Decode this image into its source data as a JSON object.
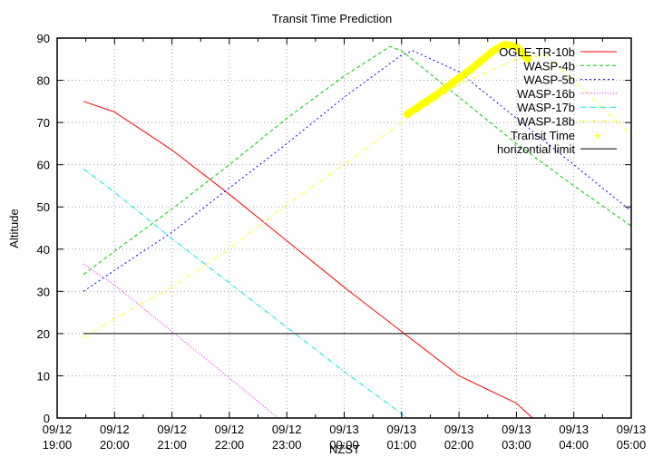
{
  "chart_data": {
    "type": "line",
    "title": "Transit Time Prediction",
    "xlabel": "NZST",
    "ylabel": "Altitude",
    "ylim": [
      0,
      90
    ],
    "yticks": [
      0,
      10,
      20,
      30,
      40,
      50,
      60,
      70,
      80,
      90
    ],
    "xlim_hours": [
      0,
      10
    ],
    "xticks": [
      {
        "date": "09/12",
        "time": "19:00"
      },
      {
        "date": "09/12",
        "time": "20:00"
      },
      {
        "date": "09/12",
        "time": "21:00"
      },
      {
        "date": "09/12",
        "time": "22:00"
      },
      {
        "date": "09/12",
        "time": "23:00"
      },
      {
        "date": "09/13",
        "time": "00:00"
      },
      {
        "date": "09/13",
        "time": "01:00"
      },
      {
        "date": "09/13",
        "time": "02:00"
      },
      {
        "date": "09/13",
        "time": "03:00"
      },
      {
        "date": "09/13",
        "time": "04:00"
      },
      {
        "date": "09/13",
        "time": "05:00"
      }
    ],
    "grid": true,
    "legend_position": "top-right-inside",
    "x_unit": "hours since 09/12 19:00",
    "series": [
      {
        "name": "OGLE-TR-10b",
        "color": "#ff0000",
        "dash": "",
        "width": 1,
        "x": [
          0.46,
          1,
          2,
          3,
          4,
          5,
          6,
          7,
          8,
          8.28
        ],
        "y": [
          75,
          72.5,
          63.5,
          53,
          42,
          31,
          20.5,
          10,
          3.5,
          0
        ]
      },
      {
        "name": "WASP-4b",
        "color": "#00cc00",
        "dash": "4,3",
        "width": 1,
        "x": [
          0.46,
          1,
          2,
          3,
          4,
          5,
          5.8,
          6,
          7,
          8,
          9,
          10
        ],
        "y": [
          34,
          39.5,
          49.5,
          60,
          71,
          81,
          88,
          87,
          76,
          65,
          55,
          45.5
        ]
      },
      {
        "name": "WASP-5b",
        "color": "#0000ff",
        "dash": "2,3",
        "width": 1,
        "x": [
          0.46,
          1,
          2,
          3,
          4,
          5,
          6,
          6.2,
          7,
          8,
          9,
          10
        ],
        "y": [
          30,
          35,
          44,
          54.5,
          65,
          76,
          86,
          87,
          82,
          71,
          60,
          49
        ]
      },
      {
        "name": "WASP-16b",
        "color": "#ff00ff",
        "dash": "1,2",
        "width": 1,
        "x": [
          0.46,
          1,
          2,
          3,
          3.85
        ],
        "y": [
          36.5,
          31.5,
          20.5,
          9.5,
          0
        ]
      },
      {
        "name": "WASP-17b",
        "color": "#00e5e5",
        "dash": "6,2,1,2",
        "width": 1,
        "x": [
          0.46,
          1,
          2,
          3,
          4,
          5,
          6,
          6.1
        ],
        "y": [
          59,
          53.5,
          42.5,
          32,
          21.5,
          11,
          1,
          0
        ]
      },
      {
        "name": "WASP-18b",
        "color": "#ffff00",
        "dash": "5,3,1,3",
        "width": 1,
        "x": [
          0.46,
          1,
          2,
          3,
          4,
          5,
          6,
          7,
          8,
          8.5,
          9,
          10
        ],
        "y": [
          19,
          23.5,
          31,
          40,
          50.5,
          60,
          70,
          79,
          85,
          86,
          80,
          67
        ]
      },
      {
        "name": "Transit Time",
        "color": "#ffff00",
        "dash": "",
        "width": 8,
        "x": [
          6.1,
          6.6,
          7.2,
          7.6,
          7.8,
          8.0,
          8.2
        ],
        "y": [
          72,
          76.5,
          82.5,
          87,
          88.5,
          88,
          85
        ]
      },
      {
        "name": "horizontial limit",
        "color": "#000000",
        "dash": "",
        "width": 1,
        "x": [
          0.46,
          10
        ],
        "y": [
          20,
          20
        ]
      }
    ]
  }
}
